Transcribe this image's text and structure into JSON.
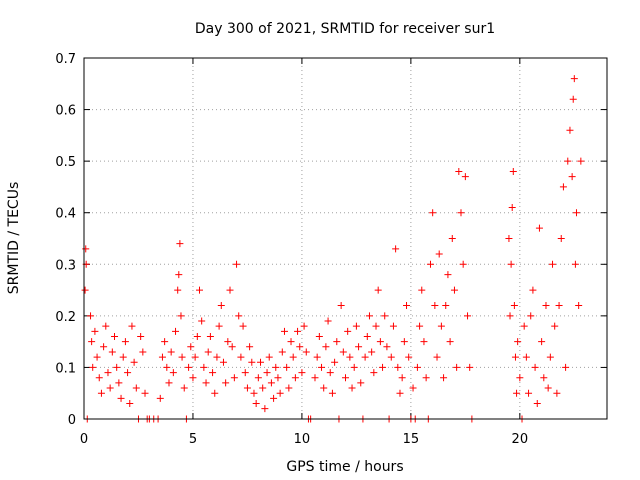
{
  "chart_data": {
    "type": "scatter",
    "title": "Day 300 of 2021, SRMTID for receiver sur1",
    "xlabel": "GPS time / hours",
    "ylabel": "SRMTID / TECUs",
    "xlim": [
      0,
      24
    ],
    "ylim": [
      0,
      0.7
    ],
    "xticks": [
      0,
      5,
      10,
      15,
      20
    ],
    "xtick_labels": [
      "0",
      "5",
      "10",
      "15",
      "20"
    ],
    "yticks": [
      0,
      0.1,
      0.2,
      0.3,
      0.4,
      0.5,
      0.6,
      0.7
    ],
    "ytick_labels": [
      "0",
      "0.1",
      "0.2",
      "0.3",
      "0.4",
      "0.5",
      "0.6",
      "0.7"
    ],
    "grid": true,
    "marker": "+",
    "series": [
      {
        "name": "SRMTID",
        "color": "#ff0000",
        "points": [
          [
            0.05,
            0.25
          ],
          [
            0.08,
            0.33
          ],
          [
            0.1,
            0.3
          ],
          [
            0.15,
            0.0
          ],
          [
            0.3,
            0.2
          ],
          [
            0.35,
            0.15
          ],
          [
            0.4,
            0.1
          ],
          [
            0.5,
            0.17
          ],
          [
            0.6,
            0.12
          ],
          [
            0.7,
            0.08
          ],
          [
            0.8,
            0.05
          ],
          [
            0.9,
            0.14
          ],
          [
            1.0,
            0.18
          ],
          [
            1.1,
            0.09
          ],
          [
            1.2,
            0.06
          ],
          [
            1.3,
            0.13
          ],
          [
            1.4,
            0.16
          ],
          [
            1.5,
            0.1
          ],
          [
            1.6,
            0.07
          ],
          [
            1.7,
            0.04
          ],
          [
            1.8,
            0.12
          ],
          [
            1.9,
            0.15
          ],
          [
            2.0,
            0.09
          ],
          [
            2.1,
            0.03
          ],
          [
            2.2,
            0.18
          ],
          [
            2.3,
            0.11
          ],
          [
            2.4,
            0.06
          ],
          [
            2.5,
            0.0
          ],
          [
            2.6,
            0.16
          ],
          [
            2.7,
            0.13
          ],
          [
            2.8,
            0.05
          ],
          [
            2.9,
            0.0
          ],
          [
            3.0,
            0.0
          ],
          [
            3.2,
            0.0
          ],
          [
            3.4,
            0.0
          ],
          [
            3.5,
            0.04
          ],
          [
            3.6,
            0.12
          ],
          [
            3.7,
            0.15
          ],
          [
            3.8,
            0.1
          ],
          [
            3.9,
            0.07
          ],
          [
            4.0,
            0.13
          ],
          [
            4.1,
            0.09
          ],
          [
            4.2,
            0.17
          ],
          [
            4.3,
            0.25
          ],
          [
            4.35,
            0.28
          ],
          [
            4.4,
            0.34
          ],
          [
            4.45,
            0.2
          ],
          [
            4.5,
            0.12
          ],
          [
            4.6,
            0.06
          ],
          [
            4.7,
            0.0
          ],
          [
            4.8,
            0.1
          ],
          [
            4.9,
            0.14
          ],
          [
            5.0,
            0.08
          ],
          [
            5.1,
            0.12
          ],
          [
            5.2,
            0.16
          ],
          [
            5.3,
            0.25
          ],
          [
            5.4,
            0.19
          ],
          [
            5.5,
            0.1
          ],
          [
            5.6,
            0.07
          ],
          [
            5.7,
            0.13
          ],
          [
            5.8,
            0.16
          ],
          [
            5.9,
            0.09
          ],
          [
            6.0,
            0.05
          ],
          [
            6.1,
            0.12
          ],
          [
            6.2,
            0.18
          ],
          [
            6.3,
            0.22
          ],
          [
            6.4,
            0.11
          ],
          [
            6.5,
            0.07
          ],
          [
            6.6,
            0.15
          ],
          [
            6.7,
            0.25
          ],
          [
            6.8,
            0.14
          ],
          [
            6.9,
            0.08
          ],
          [
            7.0,
            0.3
          ],
          [
            7.1,
            0.2
          ],
          [
            7.2,
            0.12
          ],
          [
            7.3,
            0.18
          ],
          [
            7.4,
            0.09
          ],
          [
            7.5,
            0.06
          ],
          [
            7.6,
            0.14
          ],
          [
            7.7,
            0.11
          ],
          [
            7.8,
            0.05
          ],
          [
            7.9,
            0.03
          ],
          [
            8.0,
            0.08
          ],
          [
            8.1,
            0.11
          ],
          [
            8.2,
            0.06
          ],
          [
            8.3,
            0.02
          ],
          [
            8.4,
            0.09
          ],
          [
            8.5,
            0.12
          ],
          [
            8.6,
            0.07
          ],
          [
            8.7,
            0.04
          ],
          [
            8.8,
            0.1
          ],
          [
            8.9,
            0.08
          ],
          [
            9.0,
            0.05
          ],
          [
            9.1,
            0.13
          ],
          [
            9.2,
            0.17
          ],
          [
            9.3,
            0.1
          ],
          [
            9.4,
            0.06
          ],
          [
            9.5,
            0.15
          ],
          [
            9.6,
            0.12
          ],
          [
            9.7,
            0.08
          ],
          [
            9.8,
            0.17
          ],
          [
            9.9,
            0.14
          ],
          [
            10.0,
            0.09
          ],
          [
            10.1,
            0.18
          ],
          [
            10.2,
            0.13
          ],
          [
            10.3,
            0.0
          ],
          [
            10.4,
            0.0
          ],
          [
            10.6,
            0.08
          ],
          [
            10.7,
            0.12
          ],
          [
            10.8,
            0.16
          ],
          [
            10.9,
            0.1
          ],
          [
            11.0,
            0.06
          ],
          [
            11.1,
            0.14
          ],
          [
            11.2,
            0.19
          ],
          [
            11.3,
            0.09
          ],
          [
            11.4,
            0.05
          ],
          [
            11.5,
            0.11
          ],
          [
            11.6,
            0.15
          ],
          [
            11.7,
            0.0
          ],
          [
            11.8,
            0.22
          ],
          [
            11.9,
            0.13
          ],
          [
            12.0,
            0.08
          ],
          [
            12.1,
            0.17
          ],
          [
            12.2,
            0.12
          ],
          [
            12.3,
            0.06
          ],
          [
            12.4,
            0.1
          ],
          [
            12.5,
            0.18
          ],
          [
            12.6,
            0.14
          ],
          [
            12.7,
            0.07
          ],
          [
            12.8,
            0.0
          ],
          [
            12.9,
            0.12
          ],
          [
            13.0,
            0.16
          ],
          [
            13.1,
            0.2
          ],
          [
            13.2,
            0.13
          ],
          [
            13.3,
            0.09
          ],
          [
            13.4,
            0.18
          ],
          [
            13.5,
            0.25
          ],
          [
            13.6,
            0.15
          ],
          [
            13.7,
            0.1
          ],
          [
            13.8,
            0.2
          ],
          [
            13.9,
            0.14
          ],
          [
            14.0,
            0.0
          ],
          [
            14.1,
            0.12
          ],
          [
            14.2,
            0.18
          ],
          [
            14.3,
            0.33
          ],
          [
            14.4,
            0.1
          ],
          [
            14.5,
            0.05
          ],
          [
            14.6,
            0.08
          ],
          [
            14.7,
            0.15
          ],
          [
            14.8,
            0.22
          ],
          [
            14.9,
            0.12
          ],
          [
            15.0,
            0.0
          ],
          [
            15.1,
            0.06
          ],
          [
            15.2,
            0.0
          ],
          [
            15.3,
            0.1
          ],
          [
            15.4,
            0.18
          ],
          [
            15.5,
            0.25
          ],
          [
            15.6,
            0.15
          ],
          [
            15.7,
            0.08
          ],
          [
            15.8,
            0.0
          ],
          [
            15.9,
            0.3
          ],
          [
            16.0,
            0.4
          ],
          [
            16.1,
            0.22
          ],
          [
            16.2,
            0.12
          ],
          [
            16.3,
            0.32
          ],
          [
            16.4,
            0.18
          ],
          [
            16.5,
            0.08
          ],
          [
            16.6,
            0.22
          ],
          [
            16.7,
            0.28
          ],
          [
            16.8,
            0.15
          ],
          [
            16.9,
            0.35
          ],
          [
            17.0,
            0.25
          ],
          [
            17.1,
            0.1
          ],
          [
            17.2,
            0.48
          ],
          [
            17.3,
            0.4
          ],
          [
            17.4,
            0.3
          ],
          [
            17.5,
            0.47
          ],
          [
            17.6,
            0.2
          ],
          [
            17.7,
            0.1
          ],
          [
            17.8,
            0.0
          ],
          [
            19.5,
            0.35
          ],
          [
            19.55,
            0.2
          ],
          [
            19.6,
            0.3
          ],
          [
            19.65,
            0.41
          ],
          [
            19.7,
            0.48
          ],
          [
            19.75,
            0.22
          ],
          [
            19.8,
            0.12
          ],
          [
            19.85,
            0.05
          ],
          [
            19.9,
            0.15
          ],
          [
            20.0,
            0.08
          ],
          [
            20.1,
            0.0
          ],
          [
            20.2,
            0.18
          ],
          [
            20.3,
            0.12
          ],
          [
            20.4,
            0.05
          ],
          [
            20.5,
            0.2
          ],
          [
            20.6,
            0.25
          ],
          [
            20.7,
            0.1
          ],
          [
            20.8,
            0.03
          ],
          [
            20.9,
            0.37
          ],
          [
            21.0,
            0.15
          ],
          [
            21.1,
            0.08
          ],
          [
            21.2,
            0.22
          ],
          [
            21.3,
            0.06
          ],
          [
            21.4,
            0.12
          ],
          [
            21.5,
            0.3
          ],
          [
            21.6,
            0.18
          ],
          [
            21.7,
            0.05
          ],
          [
            21.8,
            0.22
          ],
          [
            21.9,
            0.35
          ],
          [
            22.0,
            0.45
          ],
          [
            22.1,
            0.1
          ],
          [
            22.2,
            0.5
          ],
          [
            22.3,
            0.56
          ],
          [
            22.4,
            0.47
          ],
          [
            22.45,
            0.62
          ],
          [
            22.5,
            0.66
          ],
          [
            22.55,
            0.3
          ],
          [
            22.6,
            0.4
          ],
          [
            22.7,
            0.22
          ],
          [
            22.8,
            0.5
          ]
        ]
      }
    ]
  }
}
